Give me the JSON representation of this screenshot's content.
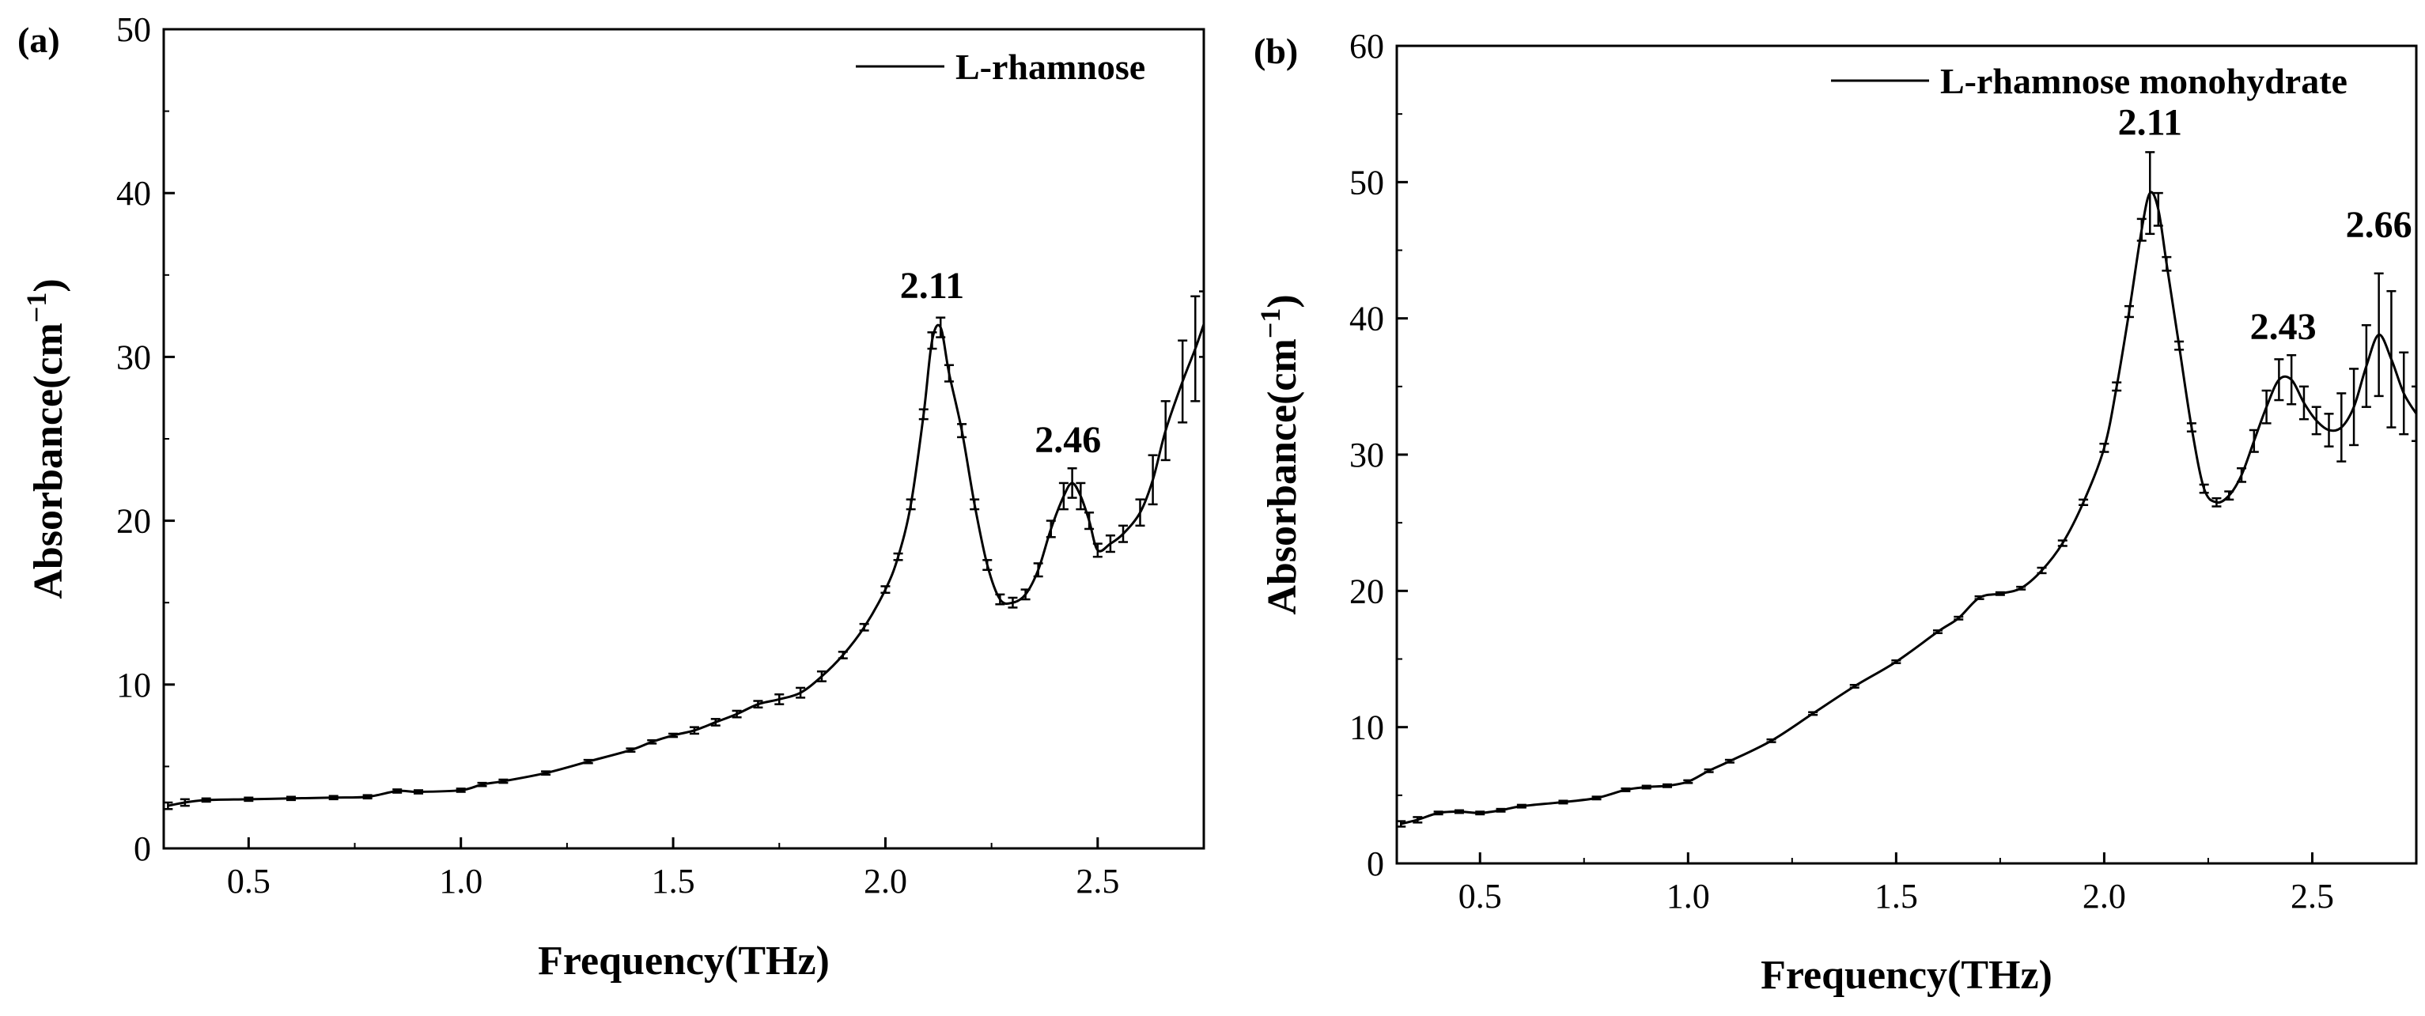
{
  "chart_data": [
    {
      "type": "line",
      "panel_label": "(a)",
      "xlabel": "Frequency(THz)",
      "ylabel_main": "Absorbance(cm",
      "ylabel_sup": "−1",
      "ylabel_close": ")",
      "xlim": [
        0.3,
        2.75
      ],
      "ylim": [
        0,
        50
      ],
      "xticks": [
        0.5,
        1.0,
        1.5,
        2.0,
        2.5
      ],
      "xtick_labels": [
        "0.5",
        "1.0",
        "1.5",
        "2.0",
        "2.5"
      ],
      "yticks": [
        0,
        10,
        20,
        30,
        40,
        50
      ],
      "ytick_labels": [
        "0",
        "10",
        "20",
        "30",
        "40",
        "50"
      ],
      "legend": "L-rhamnose",
      "legend_position": "top-right",
      "annotations": [
        {
          "text": "2.11",
          "x": 2.11,
          "y": 33.2
        },
        {
          "text": "2.46",
          "x": 2.43,
          "y": 23.8
        }
      ],
      "series": [
        {
          "name": "L-rhamnose",
          "x": [
            0.31,
            0.35,
            0.4,
            0.5,
            0.6,
            0.7,
            0.78,
            0.85,
            0.9,
            1.0,
            1.05,
            1.1,
            1.2,
            1.3,
            1.4,
            1.45,
            1.5,
            1.55,
            1.6,
            1.65,
            1.7,
            1.75,
            1.8,
            1.85,
            1.9,
            1.95,
            2.0,
            2.03,
            2.06,
            2.09,
            2.11,
            2.13,
            2.15,
            2.18,
            2.21,
            2.24,
            2.27,
            2.3,
            2.33,
            2.36,
            2.39,
            2.42,
            2.44,
            2.46,
            2.48,
            2.5,
            2.53,
            2.56,
            2.6,
            2.63,
            2.66,
            2.7,
            2.73,
            2.75
          ],
          "y": [
            2.6,
            2.8,
            2.95,
            3.0,
            3.05,
            3.1,
            3.15,
            3.5,
            3.45,
            3.55,
            3.9,
            4.1,
            4.6,
            5.3,
            6.0,
            6.5,
            6.9,
            7.2,
            7.7,
            8.2,
            8.8,
            9.1,
            9.5,
            10.5,
            11.8,
            13.5,
            15.8,
            17.8,
            21.0,
            26.5,
            31.0,
            31.8,
            29.0,
            25.5,
            21.0,
            17.3,
            15.2,
            15.0,
            15.5,
            17.0,
            19.5,
            21.5,
            22.3,
            21.5,
            20.0,
            18.2,
            18.6,
            19.2,
            20.5,
            22.5,
            25.5,
            28.5,
            30.5,
            32.0
          ],
          "err": [
            0.2,
            0.2,
            0.1,
            0.1,
            0.1,
            0.1,
            0.1,
            0.1,
            0.1,
            0.1,
            0.1,
            0.1,
            0.1,
            0.1,
            0.1,
            0.1,
            0.1,
            0.2,
            0.2,
            0.2,
            0.2,
            0.3,
            0.3,
            0.3,
            0.2,
            0.2,
            0.2,
            0.2,
            0.3,
            0.3,
            0.5,
            0.6,
            0.5,
            0.4,
            0.3,
            0.3,
            0.3,
            0.3,
            0.3,
            0.4,
            0.5,
            0.8,
            0.9,
            0.8,
            0.5,
            0.4,
            0.5,
            0.5,
            0.8,
            1.5,
            1.8,
            2.5,
            3.2,
            2.0
          ]
        }
      ]
    },
    {
      "type": "line",
      "panel_label": "(b)",
      "xlabel": "Frequency(THz)",
      "ylabel_main": "Absorbance(cm",
      "ylabel_sup": "−1",
      "ylabel_close": ")",
      "xlim": [
        0.3,
        2.75
      ],
      "ylim": [
        0,
        60
      ],
      "xticks": [
        0.5,
        1.0,
        1.5,
        2.0,
        2.5
      ],
      "xtick_labels": [
        "0.5",
        "1.0",
        "1.5",
        "2.0",
        "2.5"
      ],
      "yticks": [
        0,
        10,
        20,
        30,
        40,
        50,
        60
      ],
      "ytick_labels": [
        "0",
        "10",
        "20",
        "30",
        "40",
        "50",
        "60"
      ],
      "legend": "L-rhamnose monohydrate",
      "legend_position": "top-right",
      "annotations": [
        {
          "text": "2.11",
          "x": 2.11,
          "y": 53.0
        },
        {
          "text": "2.43",
          "x": 2.43,
          "y": 38.0
        },
        {
          "text": "2.66",
          "x": 2.66,
          "y": 45.5
        }
      ],
      "series": [
        {
          "name": "L-rhamnose monohydrate",
          "x": [
            0.31,
            0.35,
            0.4,
            0.45,
            0.5,
            0.55,
            0.6,
            0.7,
            0.78,
            0.85,
            0.9,
            0.95,
            1.0,
            1.05,
            1.1,
            1.2,
            1.3,
            1.4,
            1.5,
            1.6,
            1.65,
            1.7,
            1.75,
            1.8,
            1.85,
            1.9,
            1.95,
            2.0,
            2.03,
            2.06,
            2.09,
            2.11,
            2.13,
            2.15,
            2.18,
            2.21,
            2.24,
            2.27,
            2.3,
            2.33,
            2.36,
            2.39,
            2.42,
            2.45,
            2.48,
            2.51,
            2.54,
            2.57,
            2.6,
            2.63,
            2.66,
            2.69,
            2.72,
            2.75
          ],
          "y": [
            2.9,
            3.2,
            3.7,
            3.8,
            3.7,
            3.9,
            4.2,
            4.5,
            4.8,
            5.4,
            5.6,
            5.7,
            6.0,
            6.8,
            7.5,
            9.0,
            11.0,
            13.0,
            14.8,
            17.0,
            18.0,
            19.5,
            19.8,
            20.2,
            21.5,
            23.5,
            26.5,
            30.5,
            35.0,
            40.5,
            46.5,
            49.2,
            48.0,
            44.0,
            38.0,
            32.0,
            27.5,
            26.5,
            27.0,
            28.5,
            31.0,
            33.5,
            35.5,
            35.5,
            33.8,
            32.5,
            31.8,
            32.0,
            33.5,
            36.5,
            38.8,
            37.0,
            34.5,
            33.0
          ],
          "err": [
            0.2,
            0.2,
            0.1,
            0.1,
            0.1,
            0.1,
            0.1,
            0.1,
            0.1,
            0.1,
            0.1,
            0.1,
            0.1,
            0.1,
            0.1,
            0.1,
            0.1,
            0.1,
            0.1,
            0.1,
            0.1,
            0.1,
            0.1,
            0.1,
            0.2,
            0.2,
            0.2,
            0.3,
            0.3,
            0.4,
            0.8,
            3.0,
            1.2,
            0.5,
            0.3,
            0.3,
            0.3,
            0.3,
            0.3,
            0.5,
            0.8,
            1.2,
            1.5,
            1.8,
            1.2,
            1.0,
            1.2,
            2.5,
            2.8,
            3.0,
            4.5,
            5.0,
            3.0,
            2.0
          ]
        }
      ]
    }
  ]
}
